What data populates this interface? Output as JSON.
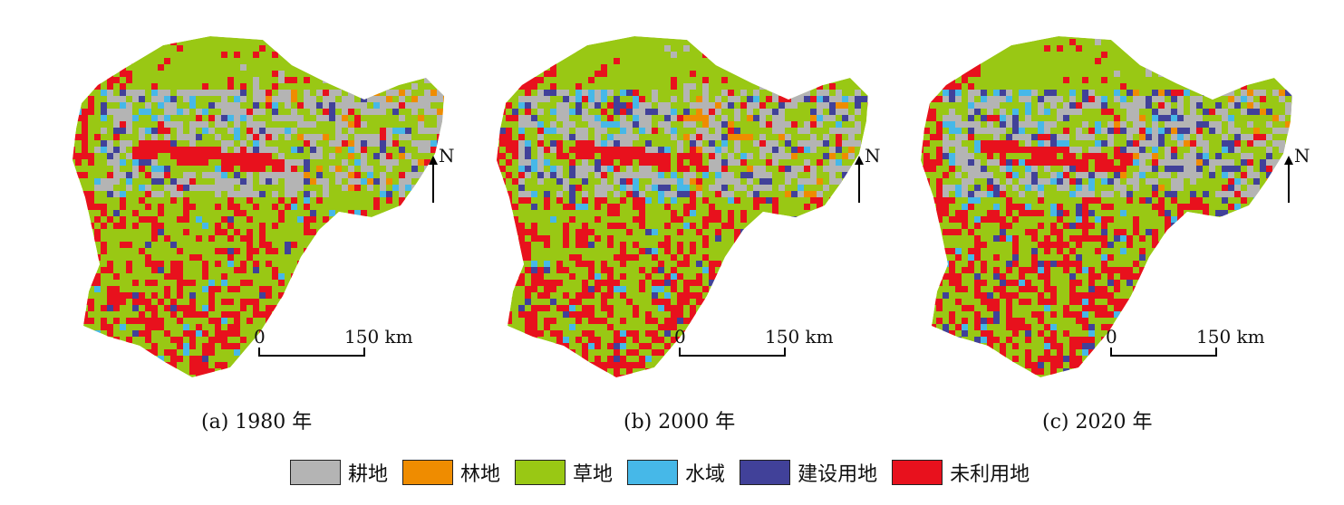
{
  "legend": {
    "cropland": {
      "label": "耕地",
      "color": "#b4b4b4"
    },
    "forest": {
      "label": "林地",
      "color": "#ef8c00"
    },
    "grassland": {
      "label": "草地",
      "color": "#99c814"
    },
    "water": {
      "label": "水域",
      "color": "#46b8e8"
    },
    "built": {
      "label": "建设用地",
      "color": "#414199"
    },
    "unused": {
      "label": "未利用地",
      "color": "#e8111d"
    }
  },
  "maps": [
    {
      "caption": "(a) 1980 年",
      "north": "N",
      "scale_start": "0",
      "scale_end": "150 km"
    },
    {
      "caption": "(b) 2000 年",
      "north": "N",
      "scale_start": "0",
      "scale_end": "150 km"
    },
    {
      "caption": "(c) 2020 年",
      "north": "N",
      "scale_start": "0",
      "scale_end": "150 km"
    }
  ]
}
